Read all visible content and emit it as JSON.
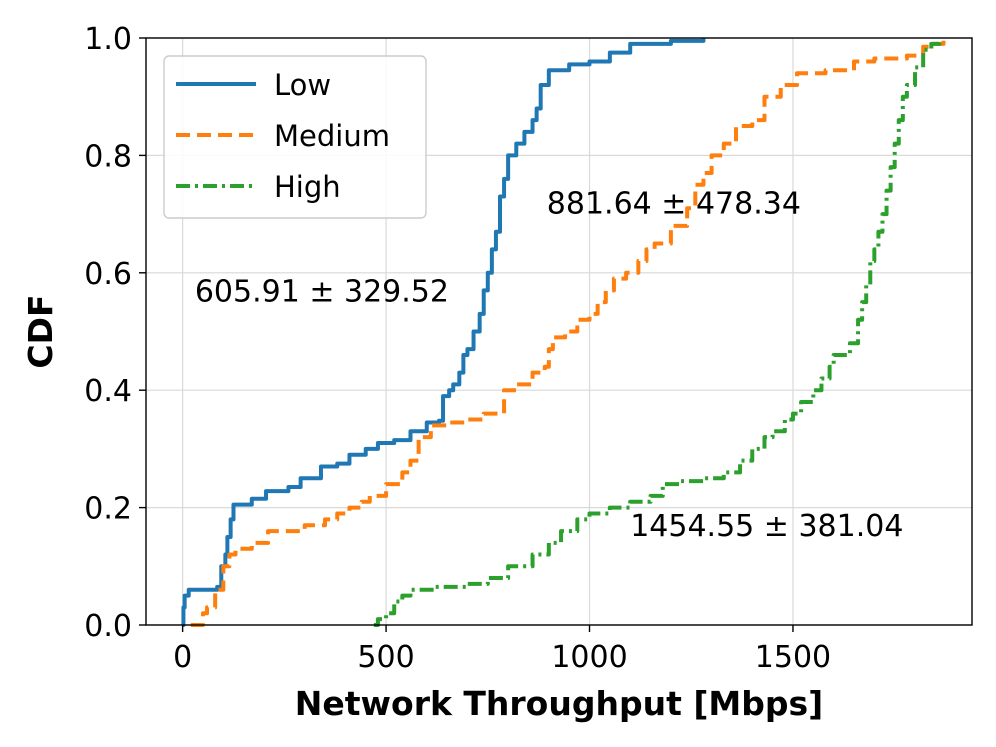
{
  "chart_data": {
    "type": "line",
    "subtype": "cdf-step",
    "title": "",
    "xlabel": "Network Throughput [Mbps]",
    "ylabel": "CDF",
    "xlim": [
      -90,
      1940
    ],
    "ylim": [
      0,
      1
    ],
    "xticks": [
      0,
      500,
      1000,
      1500
    ],
    "xtick_labels": [
      "0",
      "500",
      "1000",
      "1500"
    ],
    "yticks": [
      0.0,
      0.2,
      0.4,
      0.6,
      0.8,
      1.0
    ],
    "ytick_labels": [
      "0.0",
      "0.2",
      "0.4",
      "0.6",
      "0.8",
      "1.0"
    ],
    "grid": true,
    "legend_position": "top-left",
    "series": [
      {
        "name": "Low",
        "color": "#1f77b4",
        "dash": "solid",
        "points": [
          [
            0,
            0
          ],
          [
            2,
            0.03
          ],
          [
            5,
            0.05
          ],
          [
            15,
            0.06
          ],
          [
            85,
            0.065
          ],
          [
            95,
            0.1
          ],
          [
            105,
            0.12
          ],
          [
            110,
            0.15
          ],
          [
            118,
            0.18
          ],
          [
            125,
            0.205
          ],
          [
            170,
            0.215
          ],
          [
            205,
            0.228
          ],
          [
            260,
            0.235
          ],
          [
            290,
            0.25
          ],
          [
            340,
            0.27
          ],
          [
            380,
            0.275
          ],
          [
            410,
            0.29
          ],
          [
            450,
            0.3
          ],
          [
            480,
            0.31
          ],
          [
            520,
            0.315
          ],
          [
            560,
            0.33
          ],
          [
            600,
            0.345
          ],
          [
            630,
            0.348
          ],
          [
            640,
            0.39
          ],
          [
            655,
            0.4
          ],
          [
            665,
            0.41
          ],
          [
            680,
            0.43
          ],
          [
            690,
            0.46
          ],
          [
            700,
            0.47
          ],
          [
            715,
            0.5
          ],
          [
            730,
            0.53
          ],
          [
            740,
            0.57
          ],
          [
            750,
            0.6
          ],
          [
            760,
            0.64
          ],
          [
            770,
            0.67
          ],
          [
            780,
            0.73
          ],
          [
            790,
            0.76
          ],
          [
            800,
            0.8
          ],
          [
            820,
            0.82
          ],
          [
            840,
            0.84
          ],
          [
            860,
            0.86
          ],
          [
            870,
            0.88
          ],
          [
            880,
            0.92
          ],
          [
            900,
            0.945
          ],
          [
            950,
            0.955
          ],
          [
            1000,
            0.96
          ],
          [
            1050,
            0.975
          ],
          [
            1100,
            0.99
          ],
          [
            1200,
            0.995
          ],
          [
            1280,
            1.0
          ]
        ]
      },
      {
        "name": "Medium",
        "color": "#ff7f0e",
        "dash": "dashed",
        "points": [
          [
            20,
            0
          ],
          [
            50,
            0.02
          ],
          [
            60,
            0.03
          ],
          [
            80,
            0.06
          ],
          [
            100,
            0.1
          ],
          [
            115,
            0.12
          ],
          [
            130,
            0.13
          ],
          [
            170,
            0.14
          ],
          [
            210,
            0.16
          ],
          [
            300,
            0.17
          ],
          [
            350,
            0.18
          ],
          [
            380,
            0.19
          ],
          [
            410,
            0.2
          ],
          [
            440,
            0.21
          ],
          [
            460,
            0.22
          ],
          [
            500,
            0.24
          ],
          [
            540,
            0.26
          ],
          [
            560,
            0.28
          ],
          [
            580,
            0.32
          ],
          [
            610,
            0.34
          ],
          [
            650,
            0.345
          ],
          [
            700,
            0.35
          ],
          [
            740,
            0.36
          ],
          [
            790,
            0.4
          ],
          [
            820,
            0.41
          ],
          [
            860,
            0.43
          ],
          [
            890,
            0.44
          ],
          [
            900,
            0.47
          ],
          [
            910,
            0.49
          ],
          [
            940,
            0.5
          ],
          [
            970,
            0.52
          ],
          [
            1000,
            0.53
          ],
          [
            1020,
            0.55
          ],
          [
            1040,
            0.57
          ],
          [
            1060,
            0.59
          ],
          [
            1090,
            0.6
          ],
          [
            1120,
            0.62
          ],
          [
            1140,
            0.64
          ],
          [
            1160,
            0.65
          ],
          [
            1200,
            0.68
          ],
          [
            1240,
            0.71
          ],
          [
            1260,
            0.75
          ],
          [
            1280,
            0.77
          ],
          [
            1300,
            0.8
          ],
          [
            1330,
            0.82
          ],
          [
            1360,
            0.85
          ],
          [
            1400,
            0.86
          ],
          [
            1430,
            0.9
          ],
          [
            1470,
            0.92
          ],
          [
            1510,
            0.94
          ],
          [
            1580,
            0.945
          ],
          [
            1650,
            0.96
          ],
          [
            1700,
            0.965
          ],
          [
            1780,
            0.97
          ],
          [
            1820,
            0.985
          ],
          [
            1840,
            0.99
          ],
          [
            1870,
            1.0
          ]
        ]
      },
      {
        "name": "High",
        "color": "#2ca02c",
        "dash": "dashdot",
        "points": [
          [
            470,
            0
          ],
          [
            480,
            0.01
          ],
          [
            500,
            0.02
          ],
          [
            520,
            0.04
          ],
          [
            540,
            0.05
          ],
          [
            560,
            0.06
          ],
          [
            620,
            0.065
          ],
          [
            700,
            0.07
          ],
          [
            750,
            0.08
          ],
          [
            800,
            0.1
          ],
          [
            860,
            0.12
          ],
          [
            900,
            0.14
          ],
          [
            930,
            0.16
          ],
          [
            970,
            0.18
          ],
          [
            1000,
            0.19
          ],
          [
            1050,
            0.2
          ],
          [
            1100,
            0.21
          ],
          [
            1150,
            0.22
          ],
          [
            1180,
            0.24
          ],
          [
            1220,
            0.245
          ],
          [
            1280,
            0.25
          ],
          [
            1330,
            0.26
          ],
          [
            1370,
            0.28
          ],
          [
            1400,
            0.3
          ],
          [
            1430,
            0.32
          ],
          [
            1450,
            0.33
          ],
          [
            1480,
            0.35
          ],
          [
            1500,
            0.36
          ],
          [
            1520,
            0.38
          ],
          [
            1550,
            0.4
          ],
          [
            1570,
            0.42
          ],
          [
            1590,
            0.44
          ],
          [
            1600,
            0.46
          ],
          [
            1640,
            0.48
          ],
          [
            1660,
            0.52
          ],
          [
            1670,
            0.55
          ],
          [
            1680,
            0.58
          ],
          [
            1690,
            0.62
          ],
          [
            1700,
            0.64
          ],
          [
            1710,
            0.67
          ],
          [
            1720,
            0.7
          ],
          [
            1730,
            0.74
          ],
          [
            1740,
            0.78
          ],
          [
            1750,
            0.82
          ],
          [
            1760,
            0.86
          ],
          [
            1770,
            0.9
          ],
          [
            1780,
            0.92
          ],
          [
            1800,
            0.95
          ],
          [
            1820,
            0.98
          ],
          [
            1840,
            0.99
          ],
          [
            1860,
            1.0
          ]
        ]
      }
    ],
    "annotations": [
      {
        "text": "605.91 ± 329.52",
        "x": 30,
        "y": 0.57
      },
      {
        "text": "881.64 ± 478.34",
        "x": 895,
        "y": 0.72
      },
      {
        "text": "1454.55 ± 381.04",
        "x": 1100,
        "y": 0.17
      }
    ]
  }
}
